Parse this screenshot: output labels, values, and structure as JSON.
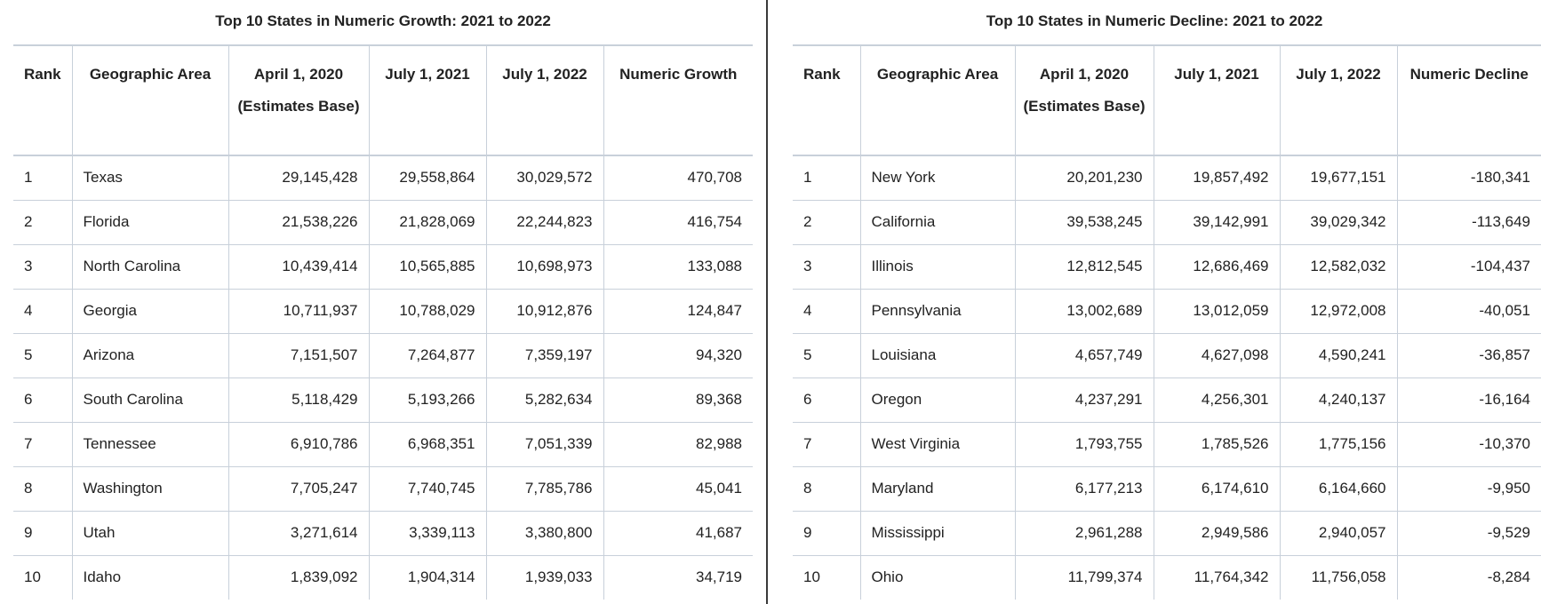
{
  "growth": {
    "title": "Top 10 States in Numeric Growth: 2021 to 2022",
    "headers": [
      "Rank",
      "Geographic Area",
      "April 1, 2020 (Estimates Base)",
      "July 1, 2021",
      "July 1, 2022",
      "Numeric Growth"
    ],
    "rows": [
      [
        "1",
        "Texas",
        "29,145,428",
        "29,558,864",
        "30,029,572",
        "470,708"
      ],
      [
        "2",
        "Florida",
        "21,538,226",
        "21,828,069",
        "22,244,823",
        "416,754"
      ],
      [
        "3",
        "North Carolina",
        "10,439,414",
        "10,565,885",
        "10,698,973",
        "133,088"
      ],
      [
        "4",
        "Georgia",
        "10,711,937",
        "10,788,029",
        "10,912,876",
        "124,847"
      ],
      [
        "5",
        "Arizona",
        "7,151,507",
        "7,264,877",
        "7,359,197",
        "94,320"
      ],
      [
        "6",
        "South Carolina",
        "5,118,429",
        "5,193,266",
        "5,282,634",
        "89,368"
      ],
      [
        "7",
        "Tennessee",
        "6,910,786",
        "6,968,351",
        "7,051,339",
        "82,988"
      ],
      [
        "8",
        "Washington",
        "7,705,247",
        "7,740,745",
        "7,785,786",
        "45,041"
      ],
      [
        "9",
        "Utah",
        "3,271,614",
        "3,339,113",
        "3,380,800",
        "41,687"
      ],
      [
        "10",
        "Idaho",
        "1,839,092",
        "1,904,314",
        "1,939,033",
        "34,719"
      ]
    ]
  },
  "decline": {
    "title": "Top 10 States in Numeric Decline: 2021 to 2022",
    "headers": [
      "Rank",
      "Geographic Area",
      "April 1, 2020 (Estimates Base)",
      "July 1, 2021",
      "July 1, 2022",
      "Numeric Decline"
    ],
    "rows": [
      [
        "1",
        "New York",
        "20,201,230",
        "19,857,492",
        "19,677,151",
        "-180,341"
      ],
      [
        "2",
        "California",
        "39,538,245",
        "39,142,991",
        "39,029,342",
        "-113,649"
      ],
      [
        "3",
        "Illinois",
        "12,812,545",
        "12,686,469",
        "12,582,032",
        "-104,437"
      ],
      [
        "4",
        "Pennsylvania",
        "13,002,689",
        "13,012,059",
        "12,972,008",
        "-40,051"
      ],
      [
        "5",
        "Louisiana",
        "4,657,749",
        "4,627,098",
        "4,590,241",
        "-36,857"
      ],
      [
        "6",
        "Oregon",
        "4,237,291",
        "4,256,301",
        "4,240,137",
        "-16,164"
      ],
      [
        "7",
        "West Virginia",
        "1,793,755",
        "1,785,526",
        "1,775,156",
        "-10,370"
      ],
      [
        "8",
        "Maryland",
        "6,177,213",
        "6,174,610",
        "6,164,660",
        "-9,950"
      ],
      [
        "9",
        "Mississippi",
        "2,961,288",
        "2,949,586",
        "2,940,057",
        "-9,529"
      ],
      [
        "10",
        "Ohio",
        "11,799,374",
        "11,764,342",
        "11,756,058",
        "-8,284"
      ]
    ]
  }
}
